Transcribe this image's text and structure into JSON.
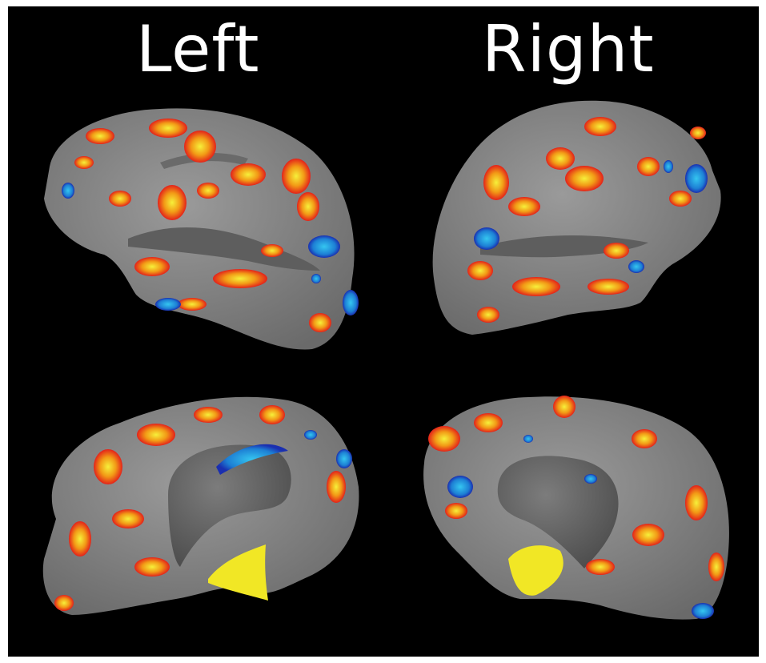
{
  "labels": {
    "left": "Left",
    "right": "Right"
  },
  "colors": {
    "background": "#000000",
    "cortex_gray": "#8a8a8a",
    "cortex_dark": "#5e5e5e",
    "activation_red": "#e8241a",
    "activation_orange": "#f07a12",
    "activation_yellow": "#f2ea2a",
    "deactivation_blue": "#1a2fb0",
    "deactivation_cyan": "#2ab6e8"
  }
}
